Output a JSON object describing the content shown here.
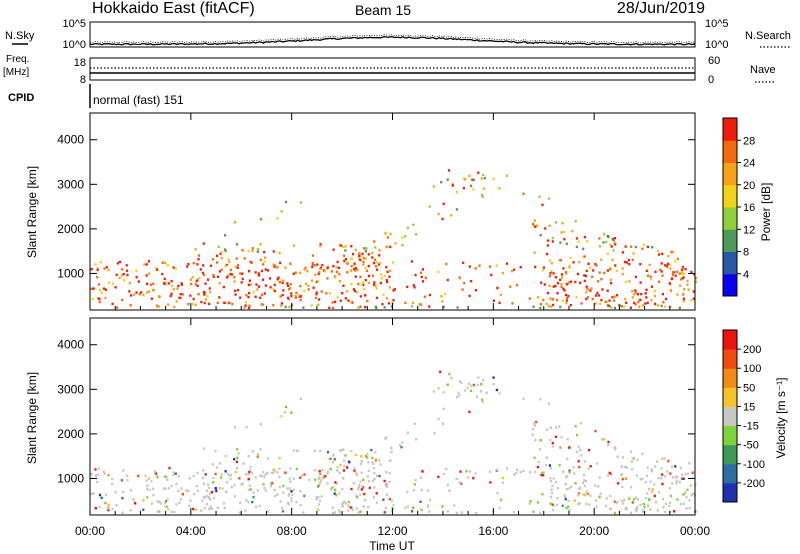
{
  "header": {
    "radar": "Hokkaido East (fitACF)",
    "beam": "Beam 15",
    "date": "28/Jun/2019"
  },
  "noise_panel": {
    "left_label": "N.Sky",
    "right_label": "N.Search",
    "left_ticks": [
      "10^5",
      "10^0"
    ],
    "right_ticks": [
      "10^5",
      "10^0"
    ]
  },
  "freq_panel": {
    "left_label_line1": "Freq.",
    "left_label_line2": "[MHz]",
    "left_ticks": [
      "18",
      "8"
    ],
    "right_label": "Nave",
    "right_ticks": [
      "60",
      "0"
    ]
  },
  "cpid_panel": {
    "label": "CPID",
    "text": "normal (fast) 151"
  },
  "chart_data": [
    {
      "type": "heatmap",
      "name": "power",
      "ylabel": "Slant Range [km]",
      "yticks": [
        1000,
        2000,
        3000,
        4000
      ],
      "ylim": [
        180,
        4600
      ],
      "xlim": [
        0,
        24
      ],
      "colorbar": {
        "label": "Power [dB]",
        "ticks": [
          "28",
          "24",
          "20",
          "16",
          "12",
          "8",
          "4"
        ],
        "colors": [
          "#0a00f0",
          "#2a58a8",
          "#4e9a5a",
          "#8fcf3a",
          "#f0d21a",
          "#f7a11a",
          "#f36a10",
          "#f01c0a"
        ]
      }
    },
    {
      "type": "heatmap",
      "name": "velocity",
      "ylabel": "Slant Range [km]",
      "yticks": [
        1000,
        2000,
        3000,
        4000
      ],
      "ylim": [
        180,
        4600
      ],
      "xlim": [
        0,
        24
      ],
      "xlabel": "Time UT",
      "xtick_labels": [
        "00:00",
        "04:00",
        "08:00",
        "12:00",
        "16:00",
        "20:00",
        "00:00"
      ],
      "xtick_values": [
        0,
        4,
        8,
        12,
        16,
        20,
        24
      ],
      "colorbar": {
        "label": "Velocity [m s⁻¹]",
        "ticks": [
          "200",
          "100",
          "50",
          "15",
          "-15",
          "-50",
          "-100",
          "-200"
        ],
        "colors": [
          "#1f2fae",
          "#2a6fa0",
          "#3f9a58",
          "#7ed23a",
          "#c8c8c2",
          "#f6c22a",
          "#f28a18",
          "#ef4a10",
          "#e8160c"
        ]
      }
    }
  ]
}
